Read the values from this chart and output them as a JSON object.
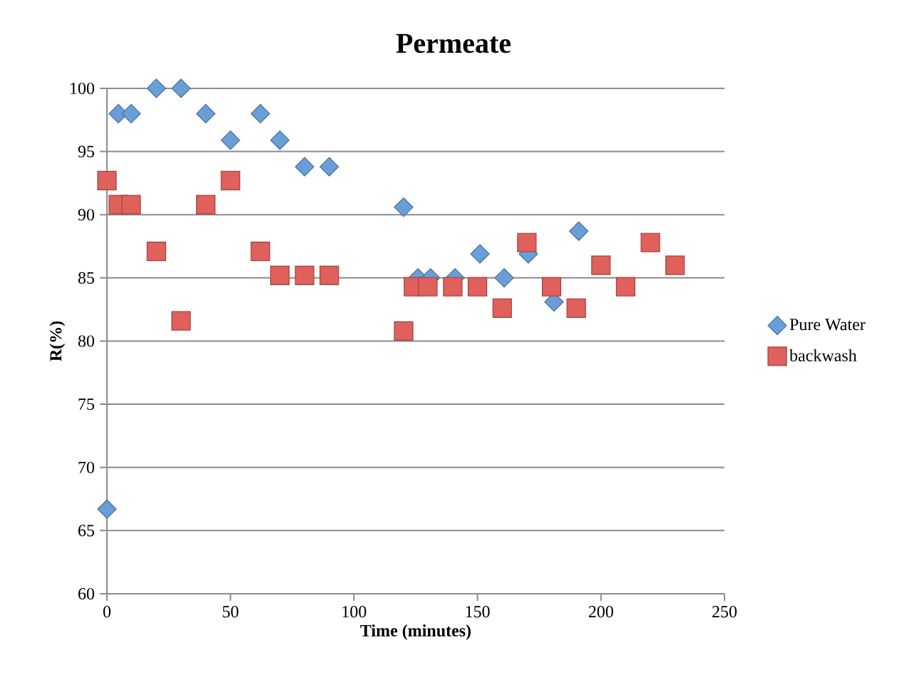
{
  "chart_data": {
    "type": "scatter",
    "title": "Permeate",
    "xlabel": "Time (minutes)",
    "ylabel": "R(%)",
    "xlim": [
      0,
      250
    ],
    "xticks": [
      0,
      50,
      100,
      150,
      200,
      250
    ],
    "ylim": [
      60,
      100
    ],
    "yticks": [
      60,
      65,
      70,
      75,
      80,
      85,
      90,
      95,
      100
    ],
    "grid": "y",
    "legend": "right",
    "series": [
      {
        "name": "Pure Water",
        "color": "#6a9ed8",
        "marker": "diamond",
        "x": [
          0,
          4.6,
          9.8,
          20,
          30,
          40,
          50,
          62.1,
          70,
          80,
          90,
          120.1,
          125.9,
          131,
          140.9,
          151,
          160.8,
          170.6,
          181,
          191
        ],
        "values": [
          66.7,
          98,
          98,
          100,
          100,
          98,
          95.9,
          98,
          95.9,
          93.8,
          93.8,
          90.6,
          85,
          85,
          85,
          86.9,
          85,
          86.9,
          83.1,
          88.7
        ]
      },
      {
        "name": "backwash",
        "color": "#e0605c",
        "marker": "square",
        "x": [
          0,
          4.6,
          9.8,
          20,
          30,
          40,
          50,
          62.1,
          70,
          80,
          90,
          120.1,
          124.1,
          129.9,
          140,
          150,
          160,
          170,
          180,
          190,
          200,
          210,
          220,
          230
        ],
        "values": [
          92.7,
          90.8,
          90.8,
          87.1,
          81.6,
          90.8,
          92.7,
          87.1,
          85.2,
          85.2,
          85.2,
          80.8,
          84.3,
          84.3,
          84.3,
          84.3,
          82.6,
          87.8,
          84.3,
          82.6,
          86,
          84.3,
          87.8,
          86
        ]
      }
    ]
  }
}
